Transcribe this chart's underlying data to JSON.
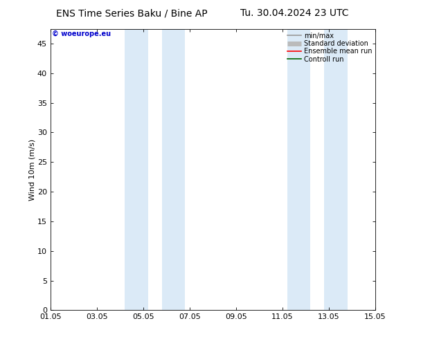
{
  "title_left": "ENS Time Series Baku / Bine AP",
  "title_right": "Tu. 30.04.2024 23 UTC",
  "ylabel": "Wind 10m (m/s)",
  "watermark": "© woeurope.eu",
  "watermark_color": "#0000cc",
  "xlim_start": 0,
  "xlim_end": 14,
  "ylim": [
    0,
    47.5
  ],
  "yticks": [
    0,
    5,
    10,
    15,
    20,
    25,
    30,
    35,
    40,
    45
  ],
  "xtick_labels": [
    "01.05",
    "03.05",
    "05.05",
    "07.05",
    "09.05",
    "11.05",
    "13.05",
    "15.05"
  ],
  "xtick_positions": [
    0,
    2,
    4,
    6,
    8,
    10,
    12,
    14
  ],
  "blue_bands": [
    [
      3.2,
      4.2
    ],
    [
      4.8,
      5.8
    ],
    [
      10.2,
      11.2
    ],
    [
      11.8,
      12.8
    ]
  ],
  "band_color": "#dbeaf7",
  "legend_entries": [
    {
      "label": "min/max",
      "color": "#999999",
      "lw": 1.2
    },
    {
      "label": "Standard deviation",
      "color": "#bbbbbb",
      "lw": 5
    },
    {
      "label": "Ensemble mean run",
      "color": "#ff0000",
      "lw": 1.2
    },
    {
      "label": "Controll run",
      "color": "#006600",
      "lw": 1.2
    }
  ],
  "bg_color": "#ffffff",
  "plot_bg_color": "#ffffff",
  "title_fontsize": 10,
  "axis_fontsize": 8,
  "tick_fontsize": 8,
  "legend_fontsize": 7
}
